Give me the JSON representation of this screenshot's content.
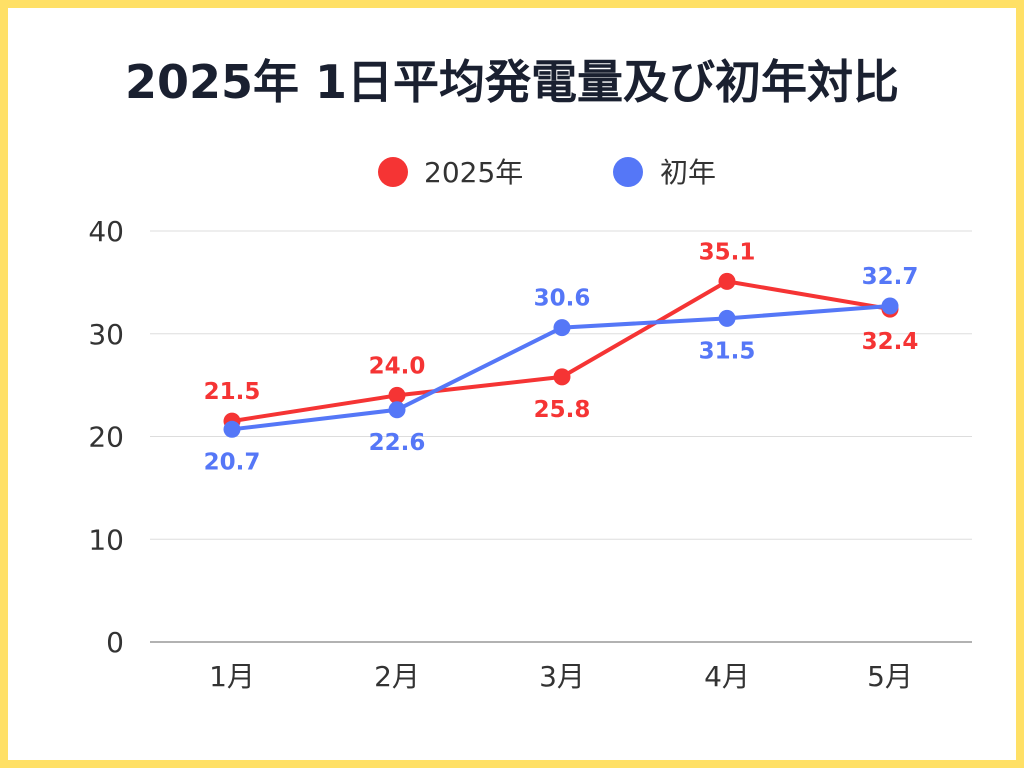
{
  "chart_data": {
    "type": "line",
    "title": "2025年 1日平均発電量及び初年対比",
    "categories": [
      "1月",
      "2月",
      "3月",
      "4月",
      "5月"
    ],
    "series": [
      {
        "name": "2025年",
        "color": "#f53434",
        "values": [
          21.5,
          24.0,
          25.8,
          35.1,
          32.4
        ],
        "label_positions": [
          "above",
          "above",
          "below",
          "above",
          "below"
        ]
      },
      {
        "name": "初年",
        "color": "#5577f7",
        "values": [
          20.7,
          22.6,
          30.6,
          31.5,
          32.7
        ],
        "label_positions": [
          "below",
          "below",
          "above",
          "below",
          "above"
        ]
      }
    ],
    "yticks": [
      "0",
      "10",
      "20",
      "30",
      "40"
    ],
    "ylim": [
      0,
      40
    ],
    "grid": true,
    "legend_position": "top-center",
    "xlabel": "",
    "ylabel": ""
  }
}
